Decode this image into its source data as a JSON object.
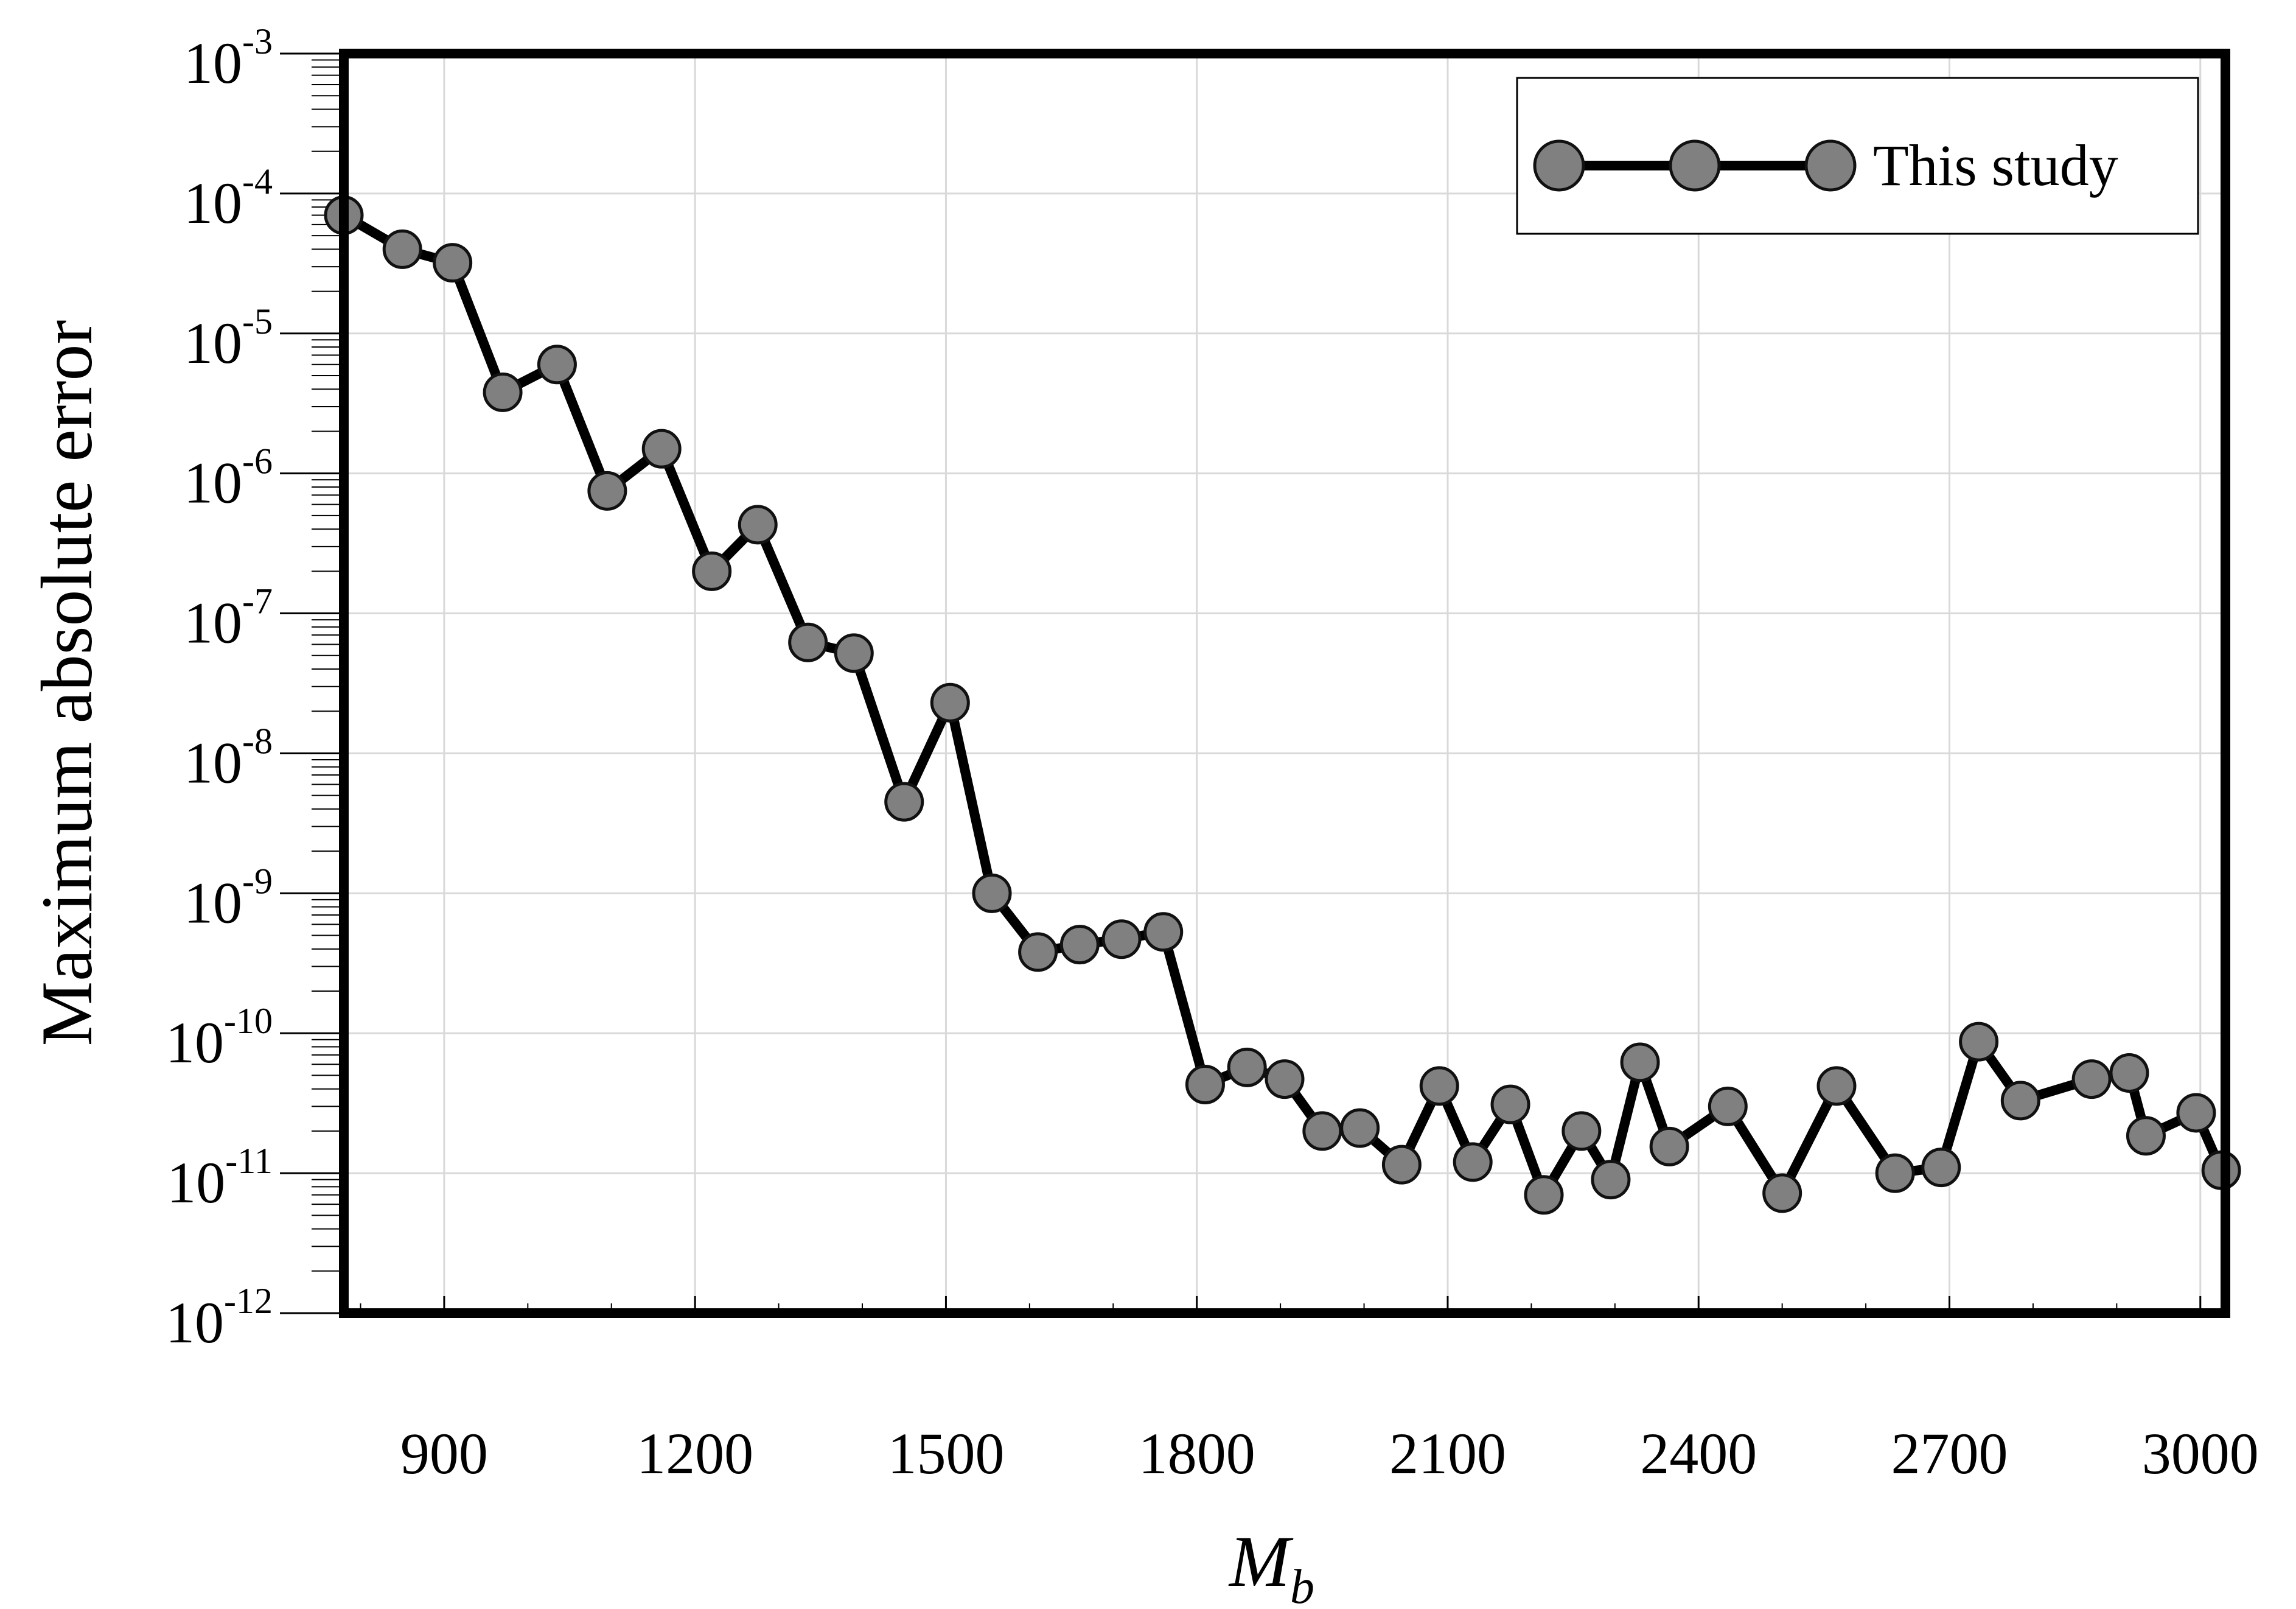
{
  "chart_data": {
    "type": "line",
    "xlabel": "M",
    "xlabel_sub": "b",
    "ylabel": "Maximum absolute error",
    "xlim": [
      780,
      3030
    ],
    "ylim_log10": [
      -12,
      -3
    ],
    "y_scale": "log",
    "grid": true,
    "legend_position": "top-right",
    "x_ticks": [
      900,
      1200,
      1500,
      1800,
      2100,
      2400,
      2700,
      3000
    ],
    "x_tick_labels": [
      "900",
      "1200",
      "1500",
      "1800",
      "2100",
      "2400",
      "2700",
      "3000"
    ],
    "y_tick_exponents": [
      -12,
      -11,
      -10,
      -9,
      -8,
      -7,
      -6,
      -5,
      -4,
      -3
    ],
    "y_tick_labels": [
      {
        "base": "10",
        "exp": "-12"
      },
      {
        "base": "10",
        "exp": "-11"
      },
      {
        "base": "10",
        "exp": "-10"
      },
      {
        "base": "10",
        "exp": "-9"
      },
      {
        "base": "10",
        "exp": "-8"
      },
      {
        "base": "10",
        "exp": "-7"
      },
      {
        "base": "10",
        "exp": "-6"
      },
      {
        "base": "10",
        "exp": "-5"
      },
      {
        "base": "10",
        "exp": "-4"
      },
      {
        "base": "10",
        "exp": "-3"
      }
    ],
    "series": [
      {
        "name": "This study",
        "color": "#000000",
        "marker_fill": "#808080",
        "x": [
          780,
          850,
          910,
          970,
          1035,
          1095,
          1160,
          1220,
          1275,
          1335,
          1390,
          1450,
          1505,
          1555,
          1610,
          1660,
          1710,
          1760,
          1810,
          1860,
          1905,
          1950,
          1995,
          2045,
          2090,
          2130,
          2175,
          2215,
          2260,
          2295,
          2330,
          2365,
          2435,
          2500,
          2565,
          2635,
          2690,
          2735,
          2785,
          2870,
          2915,
          2935,
          2995,
          3025
        ],
        "y": [
          7e-05,
          4e-05,
          3.2e-05,
          3.8e-06,
          6e-06,
          7.5e-07,
          1.5e-06,
          2e-07,
          4.3e-07,
          6.2e-08,
          5.2e-08,
          4.5e-09,
          2.3e-08,
          1e-09,
          3.8e-10,
          4.3e-10,
          4.7e-10,
          5.3e-10,
          4.3e-11,
          5.7e-11,
          4.7e-11,
          2e-11,
          2.1e-11,
          1.15e-11,
          4.2e-11,
          1.2e-11,
          3.1e-11,
          7e-12,
          2e-11,
          9e-12,
          6.2e-11,
          1.55e-11,
          3e-11,
          7.2e-12,
          4.2e-11,
          1e-11,
          1.1e-11,
          8.7e-11,
          3.3e-11,
          4.7e-11,
          5.2e-11,
          1.85e-11,
          2.7e-11,
          1.05e-11
        ]
      }
    ]
  }
}
